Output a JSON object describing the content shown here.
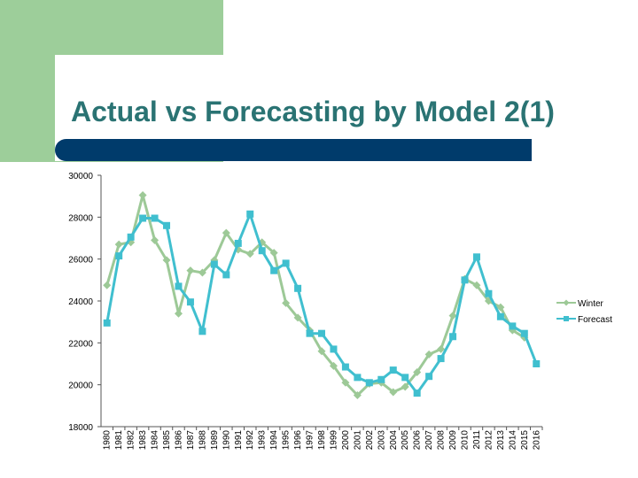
{
  "slide": {
    "title": "Actual vs Forecasting by Model 2(1)"
  },
  "colors": {
    "background": "#ffffff",
    "accent_green": "#9dce9a",
    "title_bar": "#003b6b",
    "title_text": "#2a7373"
  },
  "chart_data": {
    "type": "line",
    "title": "",
    "xlabel": "",
    "ylabel": "",
    "ylim": [
      18000,
      30000
    ],
    "yticks": [
      18000,
      20000,
      22000,
      24000,
      26000,
      28000,
      30000
    ],
    "grid": false,
    "legend_position": "right",
    "categories": [
      "1980",
      "1981",
      "1982",
      "1983",
      "1984",
      "1985",
      "1986",
      "1987",
      "1988",
      "1989",
      "1990",
      "1991",
      "1992",
      "1993",
      "1994",
      "1995",
      "1996",
      "1997",
      "1998",
      "1999",
      "2000",
      "2001",
      "2002",
      "2003",
      "2004",
      "2005",
      "2006",
      "2007",
      "2008",
      "2009",
      "2010",
      "2011",
      "2012",
      "2013",
      "2014",
      "2015",
      "2016"
    ],
    "series": [
      {
        "name": "Winter",
        "color": "#9dc997",
        "marker": "diamond",
        "values": [
          24750,
          26700,
          26800,
          29050,
          26900,
          25950,
          23400,
          25450,
          25350,
          25950,
          27250,
          26450,
          26250,
          26800,
          26300,
          23900,
          23200,
          22600,
          21600,
          20900,
          20100,
          19500,
          20050,
          20100,
          19650,
          19900,
          20600,
          21450,
          21700,
          23300,
          25050,
          24750,
          24000,
          23700,
          22600,
          22250,
          null
        ]
      },
      {
        "name": "Forecast",
        "color": "#40bfcf",
        "marker": "square",
        "values": [
          22950,
          26150,
          27050,
          27950,
          27950,
          27600,
          24700,
          23950,
          22550,
          25750,
          25250,
          26750,
          28150,
          26400,
          25450,
          25800,
          24600,
          22450,
          22450,
          21700,
          20850,
          20350,
          20100,
          20250,
          20700,
          20350,
          19600,
          20400,
          21250,
          22300,
          25000,
          26100,
          24350,
          23250,
          22800,
          22450,
          21000
        ]
      }
    ]
  }
}
